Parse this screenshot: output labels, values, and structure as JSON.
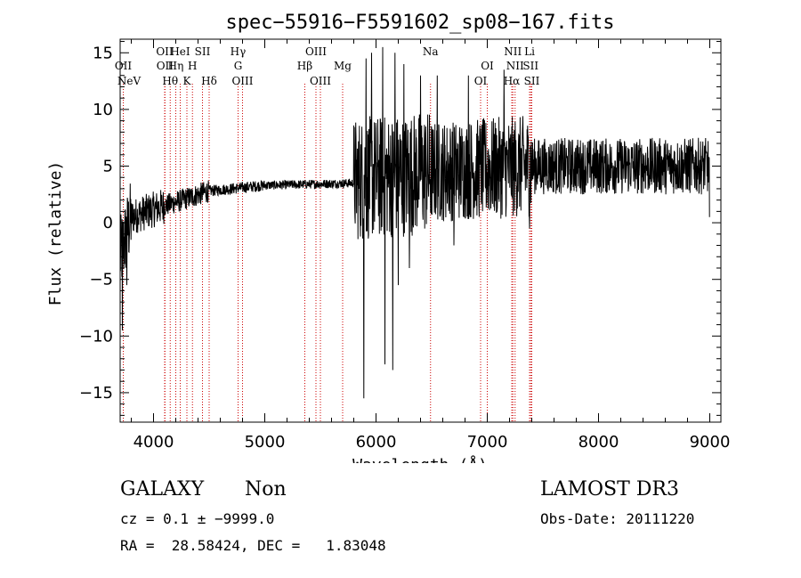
{
  "chart_data": {
    "type": "line",
    "title": "spec−55916−F5591602_sp08−167.fits",
    "xlabel": "Wavelength (Å)",
    "ylabel": "Flux (relative)",
    "xlim": [
      3700,
      9100
    ],
    "ylim": [
      -17.6,
      16.2
    ],
    "x_ticks": [
      4000,
      5000,
      6000,
      7000,
      8000,
      9000
    ],
    "x_tick_labels": [
      "4000",
      "5000",
      "6000",
      "7000",
      "8000",
      "9000"
    ],
    "y_ticks": [
      15,
      10,
      5,
      0,
      -5,
      -10,
      -15
    ],
    "y_tick_labels": [
      "15",
      "10",
      "5",
      "0",
      "−5",
      "−10",
      "−15"
    ],
    "line_color": "#000000",
    "marker_color": "#cc0000",
    "series": [
      {
        "name": "flux",
        "segments": [
          {
            "x0": 3700,
            "x1": 3800,
            "base0": -3.0,
            "base1": 0.5,
            "noise": 3.5
          },
          {
            "x0": 3800,
            "x1": 4100,
            "base0": 0.5,
            "base1": 1.5,
            "noise": 1.6
          },
          {
            "x0": 4100,
            "x1": 4500,
            "base0": 1.5,
            "base1": 2.8,
            "noise": 1.0
          },
          {
            "x0": 4500,
            "x1": 5000,
            "base0": 2.8,
            "base1": 3.3,
            "noise": 0.5
          },
          {
            "x0": 5000,
            "x1": 5800,
            "base0": 3.3,
            "base1": 3.5,
            "noise": 0.4
          },
          {
            "x0": 5800,
            "x1": 6500,
            "base0": 3.8,
            "base1": 4.5,
            "noise": 5.5
          },
          {
            "x0": 6500,
            "x1": 7400,
            "base0": 4.5,
            "base1": 5.0,
            "noise": 4.5
          },
          {
            "x0": 7400,
            "x1": 9000,
            "base0": 5.0,
            "base1": 5.0,
            "noise": 2.5
          }
        ],
        "spikes": [
          {
            "x": 3720,
            "y": -9.5
          },
          {
            "x": 3760,
            "y": -5.5
          },
          {
            "x": 5890,
            "y": -15.5
          },
          {
            "x": 5910,
            "y": 14.5
          },
          {
            "x": 5960,
            "y": 15.0
          },
          {
            "x": 6060,
            "y": 15.5
          },
          {
            "x": 6080,
            "y": -12.5
          },
          {
            "x": 6150,
            "y": -13.0
          },
          {
            "x": 6170,
            "y": 15.0
          },
          {
            "x": 6200,
            "y": -5.5
          },
          {
            "x": 6250,
            "y": 14.0
          },
          {
            "x": 6300,
            "y": -4.0
          },
          {
            "x": 6400,
            "y": 13.0
          },
          {
            "x": 6550,
            "y": 13.0
          },
          {
            "x": 6700,
            "y": -2.0
          },
          {
            "x": 6830,
            "y": 13.0
          },
          {
            "x": 7150,
            "y": 13.5
          },
          {
            "x": 7380,
            "y": -0.5
          },
          {
            "x": 9000,
            "y": 0.5
          }
        ]
      }
    ],
    "lines": [
      {
        "label": "NeV",
        "x": 3426,
        "row": 3
      },
      {
        "label": "OII",
        "x": 3728,
        "row": 1
      },
      {
        "label": "OII",
        "x": 4100,
        "row": 0
      },
      {
        "label": "OII",
        "x": 4103,
        "row": 1
      },
      {
        "label": "Hθ",
        "x": 4150,
        "row": 3
      },
      {
        "label": "Hη",
        "x": 4200,
        "row": 1
      },
      {
        "label": "HeI",
        "x": 4240,
        "row": 0
      },
      {
        "label": "K",
        "x": 4300,
        "row": 3
      },
      {
        "label": "H",
        "x": 4350,
        "row": 1
      },
      {
        "label": "SII",
        "x": 4440,
        "row": 0
      },
      {
        "label": "Hδ",
        "x": 4500,
        "row": 3
      },
      {
        "label": "Hγ",
        "x": 4760,
        "row": 0
      },
      {
        "label": "G",
        "x": 4760,
        "row": 1
      },
      {
        "label": "OIII",
        "x": 4800,
        "row": 3
      },
      {
        "label": "OIII",
        "x": 5460,
        "row": 0
      },
      {
        "label": "Hβ",
        "x": 5360,
        "row": 2
      },
      {
        "label": "OIII",
        "x": 5500,
        "row": 3
      },
      {
        "label": "Mg",
        "x": 5700,
        "row": 2
      },
      {
        "label": "Na",
        "x": 6490,
        "row": 0
      },
      {
        "label": "OI",
        "x": 7000,
        "row": 1
      },
      {
        "label": "OI",
        "x": 6940,
        "row": 3
      },
      {
        "label": "NII",
        "x": 7230,
        "row": 0
      },
      {
        "label": "NII",
        "x": 7250,
        "row": 1
      },
      {
        "label": "Hα",
        "x": 7220,
        "row": 3
      },
      {
        "label": "Li",
        "x": 7380,
        "row": 0
      },
      {
        "label": "SII",
        "x": 7390,
        "row": 1
      },
      {
        "label": "SII",
        "x": 7400,
        "row": 3
      }
    ]
  },
  "info": {
    "obj_class": "GALAXY",
    "subclass": "Non",
    "survey": "LAMOST DR3",
    "cz": "cz = 0.1 ± −9999.0",
    "obs_date": "Obs-Date: 20111220",
    "coords": "RA =  28.58424, DEC =   1.83048"
  }
}
